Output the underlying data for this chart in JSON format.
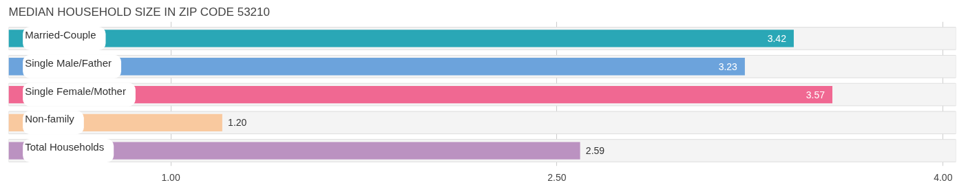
{
  "chart_data": {
    "type": "bar",
    "orientation": "horizontal",
    "title": "MEDIAN HOUSEHOLD SIZE IN ZIP CODE 53210",
    "categories": [
      "Married-Couple",
      "Single Male/Father",
      "Single Female/Mother",
      "Non-family",
      "Total Households"
    ],
    "values": [
      3.42,
      3.23,
      3.57,
      1.2,
      2.59
    ],
    "colors": [
      "#2aa7b6",
      "#6ca3dc",
      "#f06892",
      "#f9c99f",
      "#bb92c1"
    ],
    "xlim": [
      0.37,
      4.05
    ],
    "xticks": [
      {
        "value": 1,
        "label": "1.00"
      },
      {
        "value": 2.5,
        "label": "2.50"
      },
      {
        "value": 4,
        "label": "4.00"
      }
    ],
    "value_labels": [
      "3.42",
      "3.23",
      "3.57",
      "1.20",
      "2.59"
    ],
    "grid": "x"
  }
}
